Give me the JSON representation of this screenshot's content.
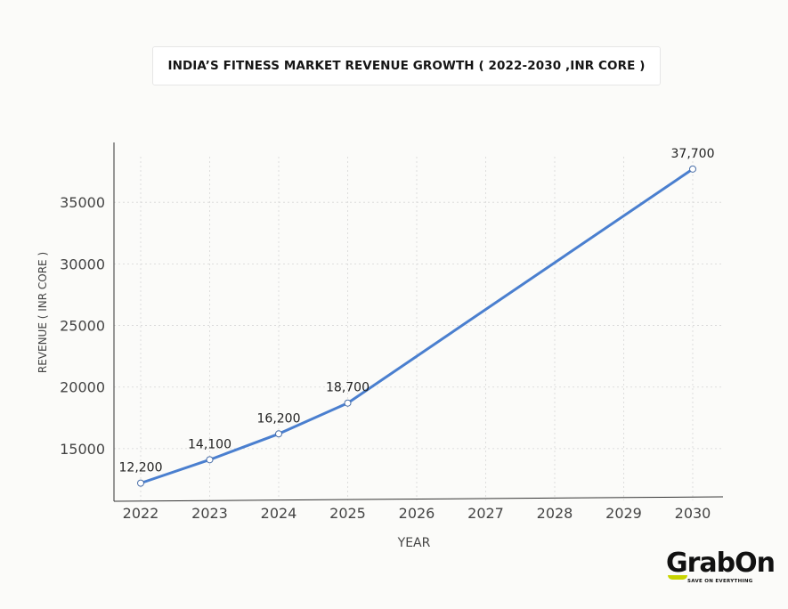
{
  "chart_data": {
    "type": "line",
    "title": "INDIA’S FITNESS MARKET REVENUE GROWTH ( 2022-2030 ,INR CORE )",
    "xlabel": "YEAR",
    "ylabel": "REVENUE ( INR CORE )",
    "x": [
      2022,
      2023,
      2024,
      2025,
      2026,
      2027,
      2028,
      2029,
      2030
    ],
    "y_ticks": [
      15000,
      20000,
      25000,
      30000,
      35000
    ],
    "ylim": [
      10800,
      38700
    ],
    "grid": true,
    "series": [
      {
        "color": "#4a7fcf",
        "points": [
          {
            "x": 2022,
            "y": 12200,
            "label": "12,200"
          },
          {
            "x": 2023,
            "y": 14100,
            "label": "14,100"
          },
          {
            "x": 2024,
            "y": 16200,
            "label": "16,200"
          },
          {
            "x": 2025,
            "y": 18700,
            "label": "18,700"
          },
          {
            "x": 2030,
            "y": 37700,
            "label": "37,700"
          }
        ]
      }
    ]
  },
  "logo": {
    "name": "GrabOn",
    "tagline": "SAVE ON EVERYTHING",
    "accent": "#c8d400"
  }
}
